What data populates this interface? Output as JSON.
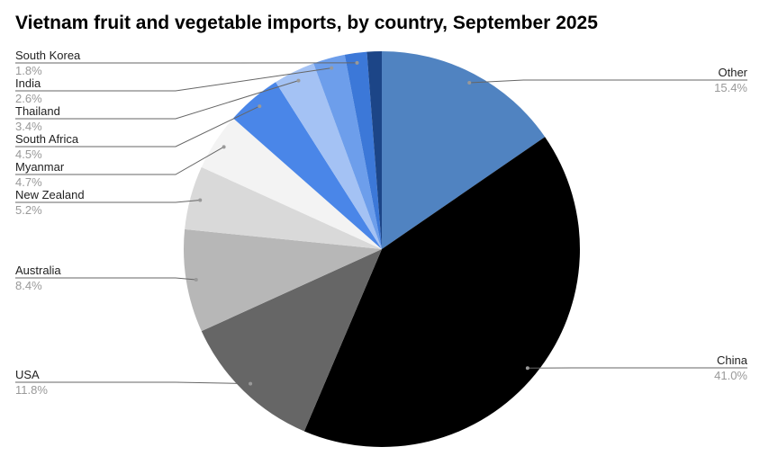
{
  "chart_data": {
    "type": "pie",
    "title": "Vietnam fruit and vegetable imports,  by country, September 2025",
    "categories": [
      "Other",
      "China",
      "USA",
      "Australia",
      "New Zealand",
      "Myanmar",
      "South Africa",
      "Thailand",
      "India",
      "South Korea",
      null
    ],
    "values": [
      15.4,
      41.0,
      11.8,
      8.4,
      5.2,
      4.7,
      4.5,
      3.4,
      2.6,
      1.8,
      1.2
    ],
    "value_labels": [
      "15.4%",
      "41.0%",
      "11.8%",
      "8.4%",
      "5.2%",
      "4.7%",
      "4.5%",
      "3.4%",
      "2.6%",
      "1.8%",
      null
    ],
    "colors": [
      "#5083c1",
      "#000000",
      "#666666",
      "#b7b7b7",
      "#d9d9d9",
      "#f3f3f3",
      "#4a86e8",
      "#a4c2f4",
      "#6d9eeb",
      "#3c78d8",
      "#1c4587"
    ]
  }
}
